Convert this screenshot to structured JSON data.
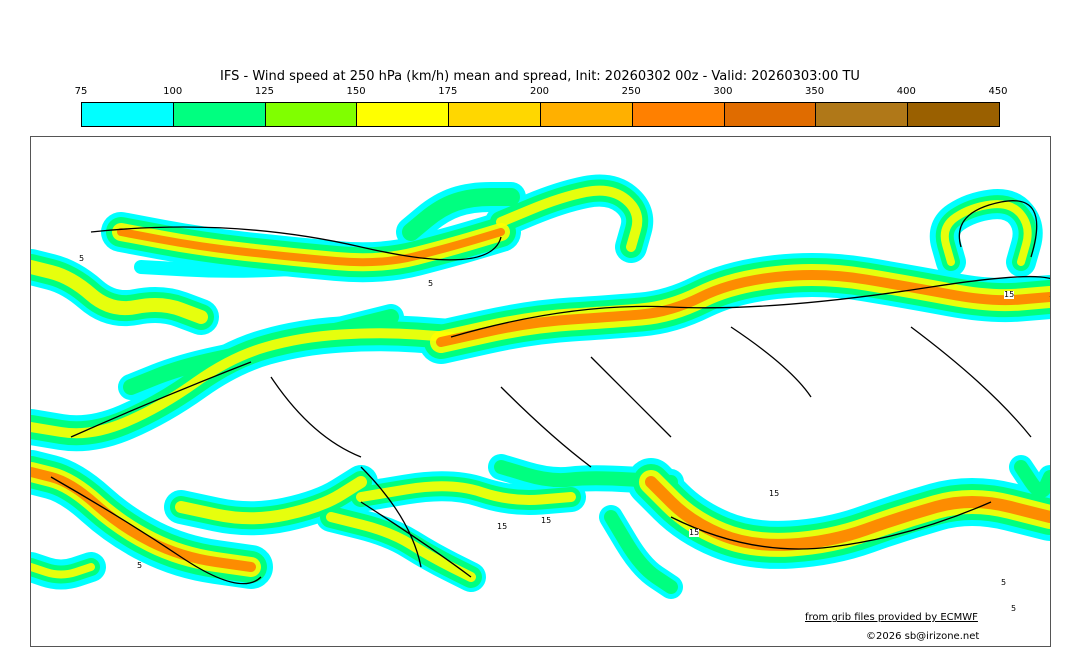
{
  "title": "IFS - Wind speed at 250 hPa (km/h) mean and spread, Init: 20260302 00z - Valid: 20260303:00 TU",
  "colorbar": {
    "ticks": [
      "75",
      "100",
      "125",
      "150",
      "175",
      "200",
      "250",
      "300",
      "350",
      "400",
      "450"
    ],
    "colors": [
      "#00ffff",
      "#00ff80",
      "#80ff00",
      "#ffff00",
      "#ffd700",
      "#ffb000",
      "#ff8000",
      "#e06c00",
      "#b07818",
      "#9a6000"
    ]
  },
  "contour_labels": [
    "5",
    "5",
    "15",
    "15",
    "15",
    "15",
    "15",
    "5",
    "5",
    "5"
  ],
  "credit": "from grib files provided by ECMWF",
  "copyright": "©2026 sb@irizone.net"
}
